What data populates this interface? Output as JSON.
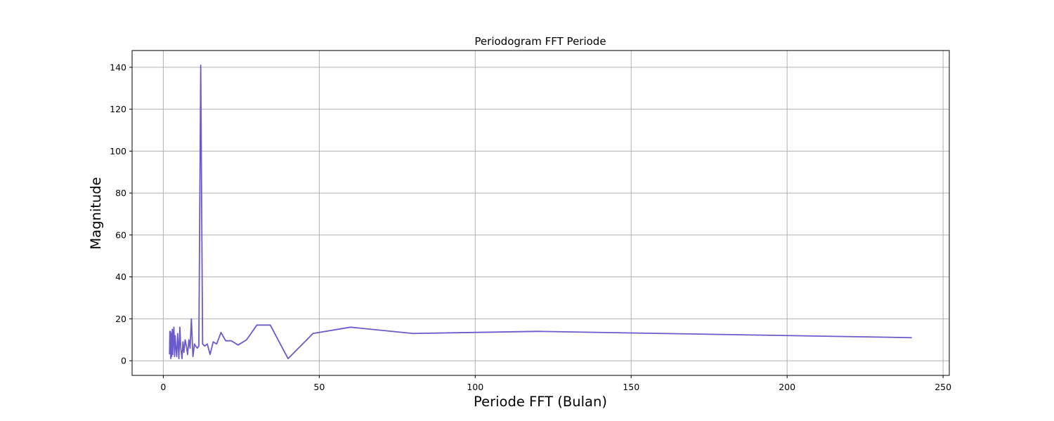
{
  "chart_data": {
    "type": "line",
    "title": "Periodogram FFT Periode",
    "xlabel": "Periode FFT (Bulan)",
    "ylabel": "Magnitude",
    "xlim": [
      -10,
      252
    ],
    "ylim": [
      -7,
      148
    ],
    "xticks": [
      0,
      50,
      100,
      150,
      200,
      250
    ],
    "yticks": [
      0,
      20,
      40,
      60,
      80,
      100,
      120,
      140
    ],
    "grid": true,
    "line_color": "#6a5acd",
    "series": [
      {
        "x": [
          2.0,
          2.1,
          2.2,
          2.3,
          2.4,
          2.5,
          2.6,
          2.7,
          2.8,
          2.9,
          3.0,
          3.2,
          3.4,
          3.6,
          3.8,
          4.0,
          4.3,
          4.6,
          5.0,
          5.3,
          5.6,
          6.0,
          6.3,
          6.6,
          7.0,
          7.4,
          7.8,
          8.2,
          8.6,
          9.0,
          9.5,
          10.0,
          10.4,
          10.9,
          11.4,
          12.0,
          12.6,
          13.3,
          14.1,
          15.0,
          16.0,
          17.1,
          18.5,
          20.0,
          21.8,
          24.0,
          26.7,
          30.0,
          34.3,
          40.0,
          48.0,
          60.0,
          80.0,
          120.0,
          240.0
        ],
        "y": [
          3,
          14,
          8,
          14,
          1,
          10,
          13,
          2,
          9,
          15,
          3,
          11,
          16,
          2,
          12,
          7,
          2,
          13,
          1,
          16,
          6,
          1,
          9,
          4,
          10,
          7,
          3,
          10,
          6,
          20,
          2,
          8,
          7,
          6,
          7,
          141,
          8,
          7,
          8,
          3,
          9,
          8,
          13.5,
          9.5,
          9.5,
          7.5,
          10,
          17,
          17,
          1,
          13,
          16,
          13,
          14,
          11
        ]
      }
    ]
  }
}
